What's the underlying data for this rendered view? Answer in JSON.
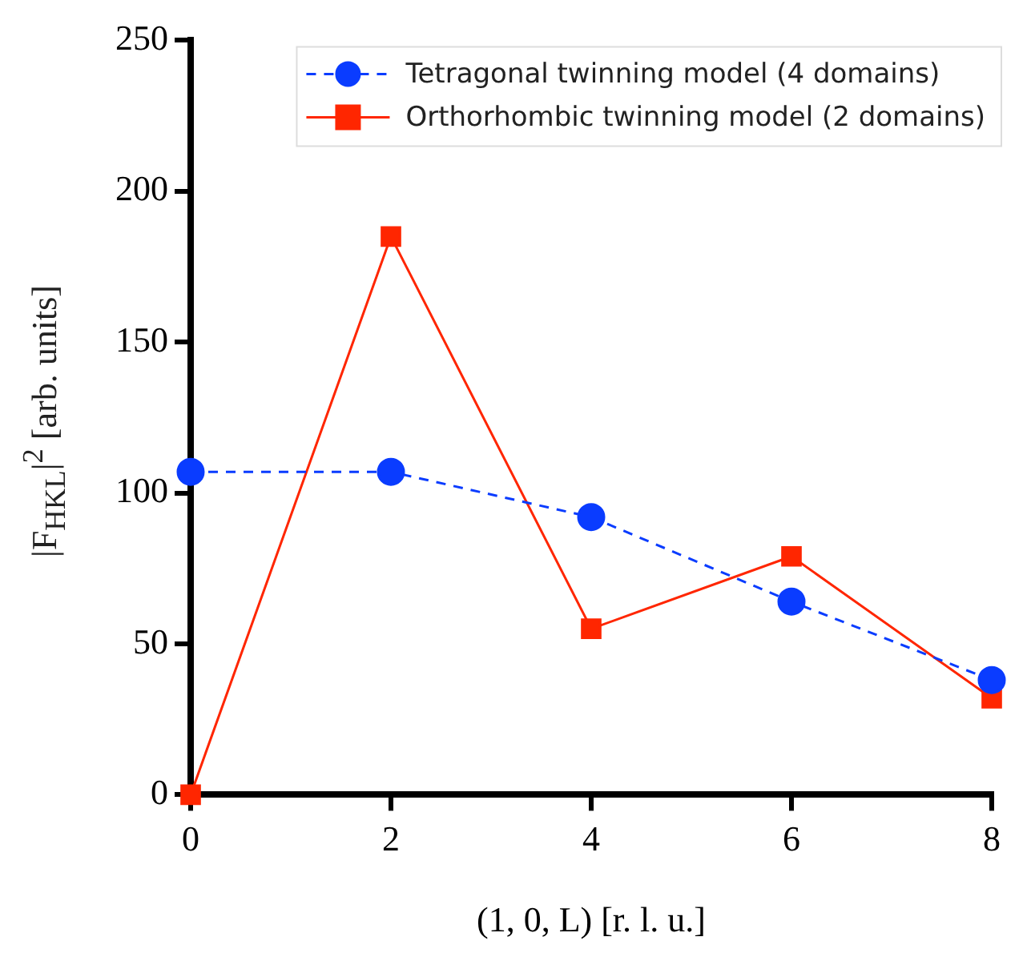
{
  "chart_data": {
    "type": "line",
    "xlabel": "(1, 0, L) [r. l. u.]",
    "ylabel": "|F$_{HKL}$|$^{2}$ [arb. units]",
    "x": [
      0,
      2,
      4,
      6,
      8
    ],
    "series": [
      {
        "name": "Tetragonal twinning model (4 domains)",
        "color": "#0a3cff",
        "values": [
          107,
          107,
          92,
          64,
          38
        ],
        "marker": "circle",
        "line_style": "dashed"
      },
      {
        "name": "Orthorhombic twinning model (2 domains)",
        "color": "#ff2600",
        "values": [
          0,
          185,
          55,
          79,
          32
        ],
        "marker": "square",
        "line_style": "solid"
      }
    ],
    "xlim": [
      0,
      8
    ],
    "xticks": [
      0,
      2,
      4,
      6,
      8
    ],
    "ylim": [
      0,
      250
    ],
    "yticks": [
      0,
      50,
      100,
      150,
      200,
      250
    ],
    "grid": false,
    "legend": "top right"
  }
}
